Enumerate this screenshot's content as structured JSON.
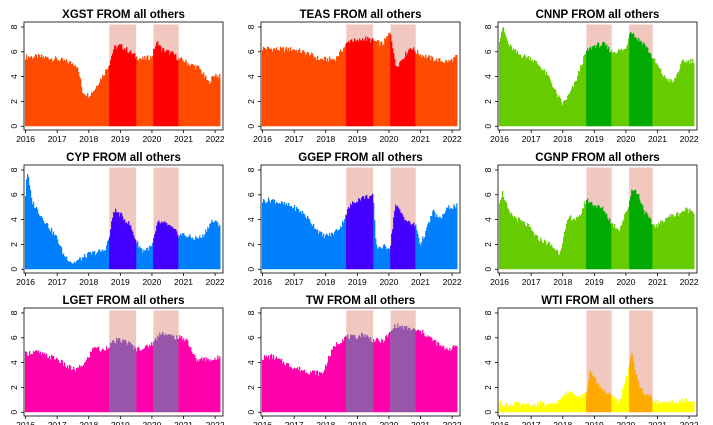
{
  "figure": {
    "description_hidden": false
  },
  "axes": {
    "x_ticks": [
      "2016",
      "2017",
      "2018",
      "2019",
      "2020",
      "2021",
      "2022"
    ],
    "x_tick_values": [
      2016,
      2017,
      2018,
      2019,
      2020,
      2021,
      2022
    ],
    "y_ticks": [
      "0",
      "2",
      "4",
      "6",
      "8"
    ],
    "y_tick_values": [
      0,
      2,
      4,
      6,
      8
    ]
  },
  "chart_data": [
    {
      "type": "area",
      "title": "XGST FROM all others",
      "base_color": "#ff4b00",
      "highlight_color": "#ff0000",
      "shade_color": "#f0c8c0",
      "xlim": [
        2015.95,
        2022.25
      ],
      "ylim": [
        -0.3,
        8.4
      ],
      "shaded_periods": [
        [
          2018.65,
          2019.5
        ],
        [
          2020.05,
          2020.85
        ]
      ],
      "x": [
        2016.0,
        2016.5,
        2017.0,
        2017.3,
        2017.6,
        2017.7,
        2017.75,
        2017.8,
        2018.0,
        2018.2,
        2018.3,
        2018.5,
        2018.65,
        2018.8,
        2019.0,
        2019.2,
        2019.5,
        2019.7,
        2020.0,
        2020.1,
        2020.2,
        2020.3,
        2020.5,
        2020.7,
        2020.85,
        2021.0,
        2021.2,
        2021.5,
        2021.8,
        2022.0,
        2022.15
      ],
      "values": [
        5.6,
        5.6,
        5.4,
        5.2,
        5.0,
        4.2,
        3.6,
        2.8,
        2.5,
        3.0,
        3.5,
        4.3,
        5.0,
        6.3,
        6.5,
        6.2,
        5.6,
        5.4,
        5.6,
        6.4,
        6.8,
        6.2,
        6.0,
        5.8,
        5.4,
        5.3,
        5.0,
        4.7,
        3.5,
        4.2,
        4.0
      ]
    },
    {
      "type": "area",
      "title": "TEAS FROM all others",
      "base_color": "#ff4b00",
      "highlight_color": "#ff0000",
      "shade_color": "#f0c8c0",
      "xlim": [
        2015.95,
        2022.25
      ],
      "ylim": [
        -0.3,
        8.4
      ],
      "shaded_periods": [
        [
          2018.65,
          2019.5
        ],
        [
          2020.05,
          2020.85
        ]
      ],
      "x": [
        2016.0,
        2016.5,
        2017.0,
        2017.5,
        2017.8,
        2018.0,
        2018.3,
        2018.65,
        2018.8,
        2019.0,
        2019.2,
        2019.5,
        2019.8,
        2020.05,
        2020.15,
        2020.2,
        2020.3,
        2020.5,
        2020.7,
        2020.85,
        2021.0,
        2021.3,
        2021.6,
        2021.9,
        2022.15
      ],
      "values": [
        6.3,
        6.2,
        6.2,
        5.8,
        5.4,
        5.4,
        5.4,
        6.6,
        7.0,
        6.8,
        7.1,
        6.9,
        6.6,
        7.6,
        6.0,
        4.9,
        5.0,
        5.7,
        6.4,
        6.0,
        5.8,
        5.5,
        5.3,
        5.2,
        5.6
      ]
    },
    {
      "type": "area",
      "title": "CNNP FROM all others",
      "base_color": "#66cc00",
      "highlight_color": "#00aa00",
      "shade_color": "#f0c8c0",
      "xlim": [
        2015.95,
        2022.25
      ],
      "ylim": [
        -0.3,
        8.4
      ],
      "shaded_periods": [
        [
          2018.75,
          2019.55
        ],
        [
          2020.1,
          2020.85
        ]
      ],
      "x": [
        2016.0,
        2016.1,
        2016.3,
        2016.6,
        2017.0,
        2017.3,
        2017.6,
        2017.8,
        2018.0,
        2018.2,
        2018.4,
        2018.6,
        2018.75,
        2019.0,
        2019.3,
        2019.55,
        2019.8,
        2020.0,
        2020.15,
        2020.3,
        2020.6,
        2020.85,
        2021.0,
        2021.2,
        2021.5,
        2021.8,
        2022.15
      ],
      "values": [
        7.0,
        8.0,
        6.5,
        5.8,
        5.5,
        4.8,
        3.8,
        2.6,
        1.8,
        2.5,
        3.5,
        5.0,
        6.0,
        6.5,
        6.6,
        6.0,
        6.1,
        6.2,
        7.8,
        7.2,
        6.6,
        5.5,
        4.9,
        4.0,
        3.5,
        5.2,
        5.3
      ]
    },
    {
      "type": "area",
      "title": "CYP FROM all others",
      "base_color": "#0080ff",
      "highlight_color": "#4400ff",
      "shade_color": "#f0c8c0",
      "xlim": [
        2015.95,
        2022.25
      ],
      "ylim": [
        -0.3,
        8.4
      ],
      "shaded_periods": [
        [
          2018.65,
          2019.5
        ],
        [
          2020.05,
          2020.85
        ]
      ],
      "x": [
        2016.0,
        2016.05,
        2016.2,
        2016.5,
        2016.8,
        2017.0,
        2017.2,
        2017.5,
        2017.8,
        2018.0,
        2018.3,
        2018.5,
        2018.65,
        2018.8,
        2019.0,
        2019.3,
        2019.5,
        2019.7,
        2020.0,
        2020.2,
        2020.5,
        2020.85,
        2021.0,
        2021.3,
        2021.6,
        2021.9,
        2022.15
      ],
      "values": [
        6.0,
        8.0,
        5.5,
        4.3,
        3.2,
        2.5,
        1.2,
        0.5,
        0.9,
        1.2,
        1.4,
        1.5,
        2.5,
        4.8,
        4.4,
        3.6,
        2.3,
        1.5,
        1.8,
        3.8,
        3.6,
        2.8,
        2.8,
        2.5,
        2.6,
        3.9,
        3.6
      ]
    },
    {
      "type": "area",
      "title": "GGEP FROM all others",
      "base_color": "#0080ff",
      "highlight_color": "#4400ff",
      "shade_color": "#f0c8c0",
      "xlim": [
        2015.95,
        2022.25
      ],
      "ylim": [
        -0.3,
        8.4
      ],
      "shaded_periods": [
        [
          2018.65,
          2019.5
        ],
        [
          2020.05,
          2020.85
        ]
      ],
      "x": [
        2016.0,
        2016.3,
        2016.6,
        2017.0,
        2017.3,
        2017.6,
        2017.9,
        2018.2,
        2018.5,
        2018.65,
        2018.8,
        2019.0,
        2019.2,
        2019.5,
        2019.6,
        2019.8,
        2020.05,
        2020.2,
        2020.4,
        2020.6,
        2020.85,
        2021.0,
        2021.2,
        2021.4,
        2021.6,
        2021.9,
        2022.15
      ],
      "values": [
        5.5,
        5.6,
        5.3,
        5.0,
        4.5,
        3.6,
        2.7,
        2.8,
        3.5,
        4.5,
        5.2,
        5.6,
        5.8,
        5.9,
        1.8,
        1.8,
        1.8,
        5.2,
        4.5,
        3.8,
        3.5,
        2.0,
        3.2,
        4.7,
        4.0,
        5.0,
        5.1
      ]
    },
    {
      "type": "area",
      "title": "CGNP FROM all others",
      "base_color": "#66cc00",
      "highlight_color": "#00aa00",
      "shade_color": "#f0c8c0",
      "xlim": [
        2015.95,
        2022.25
      ],
      "ylim": [
        -0.3,
        8.4
      ],
      "shaded_periods": [
        [
          2018.75,
          2019.55
        ],
        [
          2020.1,
          2020.85
        ]
      ],
      "x": [
        2016.0,
        2016.1,
        2016.3,
        2016.6,
        2016.9,
        2017.2,
        2017.6,
        2017.9,
        2018.2,
        2018.5,
        2018.75,
        2019.0,
        2019.3,
        2019.55,
        2019.8,
        2020.1,
        2020.2,
        2020.4,
        2020.6,
        2020.85,
        2021.0,
        2021.3,
        2021.6,
        2021.9,
        2022.15
      ],
      "values": [
        5.5,
        6.2,
        4.5,
        4.0,
        3.5,
        2.5,
        2.0,
        1.3,
        4.2,
        4.0,
        5.6,
        5.2,
        4.8,
        3.7,
        3.2,
        5.2,
        6.6,
        6.0,
        4.6,
        3.6,
        3.5,
        4.2,
        4.4,
        4.8,
        4.7
      ]
    },
    {
      "type": "area",
      "title": "LGET FROM all others",
      "base_color": "#ff00aa",
      "highlight_color": "#9955aa",
      "shade_color": "#f0c8c0",
      "xlim": [
        2015.95,
        2022.25
      ],
      "ylim": [
        -0.3,
        8.4
      ],
      "shaded_periods": [
        [
          2018.65,
          2019.5
        ],
        [
          2020.05,
          2020.85
        ]
      ],
      "x": [
        2016.0,
        2016.3,
        2016.6,
        2017.0,
        2017.3,
        2017.6,
        2017.9,
        2018.2,
        2018.4,
        2018.65,
        2018.9,
        2019.2,
        2019.5,
        2019.8,
        2020.05,
        2020.3,
        2020.5,
        2020.85,
        2021.1,
        2021.4,
        2021.7,
        2022.0,
        2022.15
      ],
      "values": [
        4.7,
        4.9,
        4.6,
        4.3,
        3.7,
        3.4,
        4.0,
        5.4,
        4.9,
        5.4,
        5.8,
        5.7,
        5.1,
        5.2,
        5.6,
        6.5,
        6.2,
        6.0,
        5.9,
        4.2,
        4.3,
        4.2,
        4.5
      ]
    },
    {
      "type": "area",
      "title": "TW FROM all others",
      "base_color": "#ff00aa",
      "highlight_color": "#9955aa",
      "shade_color": "#f0c8c0",
      "xlim": [
        2015.95,
        2022.25
      ],
      "ylim": [
        -0.3,
        8.4
      ],
      "shaded_periods": [
        [
          2018.65,
          2019.5
        ],
        [
          2020.05,
          2020.85
        ]
      ],
      "x": [
        2016.0,
        2016.3,
        2016.6,
        2017.0,
        2017.4,
        2017.7,
        2017.9,
        2018.1,
        2018.3,
        2018.65,
        2018.9,
        2019.2,
        2019.5,
        2019.8,
        2020.05,
        2020.2,
        2020.5,
        2020.85,
        2021.1,
        2021.4,
        2021.7,
        2022.0,
        2022.15
      ],
      "values": [
        4.4,
        4.5,
        4.1,
        3.6,
        3.3,
        3.2,
        3.1,
        4.4,
        5.4,
        6.1,
        6.0,
        6.3,
        5.8,
        5.7,
        6.4,
        7.0,
        6.8,
        6.6,
        6.4,
        5.8,
        5.2,
        5.1,
        5.4
      ]
    },
    {
      "type": "area",
      "title": "WTI FROM all others",
      "base_color": "#ffff00",
      "highlight_color": "#ffaa00",
      "shade_color": "#f0c8c0",
      "xlim": [
        2015.95,
        2022.25
      ],
      "ylim": [
        -0.3,
        8.4
      ],
      "shaded_periods": [
        [
          2018.75,
          2019.55
        ],
        [
          2020.1,
          2020.85
        ]
      ],
      "x": [
        2016.0,
        2016.2,
        2016.5,
        2016.8,
        2017.0,
        2017.3,
        2017.6,
        2017.9,
        2018.1,
        2018.3,
        2018.5,
        2018.75,
        2018.85,
        2019.0,
        2019.2,
        2019.4,
        2019.55,
        2019.8,
        2020.1,
        2020.2,
        2020.3,
        2020.45,
        2020.6,
        2020.85,
        2021.0,
        2021.3,
        2021.6,
        2021.9,
        2022.15
      ],
      "values": [
        0.8,
        0.6,
        0.7,
        0.5,
        0.6,
        0.7,
        0.5,
        0.9,
        1.5,
        1.7,
        1.3,
        1.5,
        3.2,
        2.8,
        2.0,
        1.5,
        1.2,
        0.9,
        3.5,
        5.0,
        3.2,
        2.0,
        1.5,
        1.1,
        0.8,
        0.7,
        0.8,
        1.0,
        0.8
      ]
    }
  ]
}
